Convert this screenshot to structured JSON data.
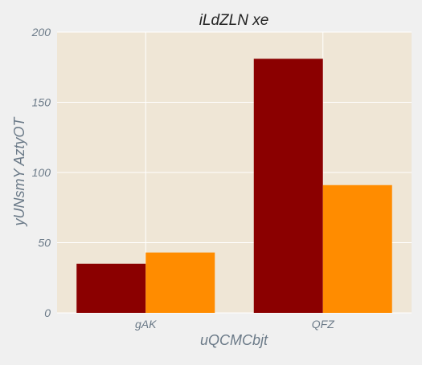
{
  "chart_data": {
    "type": "bar",
    "title": "iLdZLN xe",
    "xlabel": "uQCMCbjt",
    "ylabel": "yUNsmY AztyOT",
    "categories": [
      "gAK",
      "QFZ"
    ],
    "series": [
      {
        "values": [
          35,
          181
        ],
        "color": "#8b0000"
      },
      {
        "values": [
          43,
          91
        ],
        "color": "#ff8c00"
      }
    ],
    "ylim": [
      0,
      200
    ],
    "yticks": [
      0,
      50,
      100,
      150,
      200
    ],
    "grid": true
  },
  "colors": {
    "page_background": "#f0f0f0",
    "plot_background": "#efe6d6",
    "grid": "#ffffff",
    "tick_text": "#6b7a88",
    "title_text": "#222222"
  }
}
